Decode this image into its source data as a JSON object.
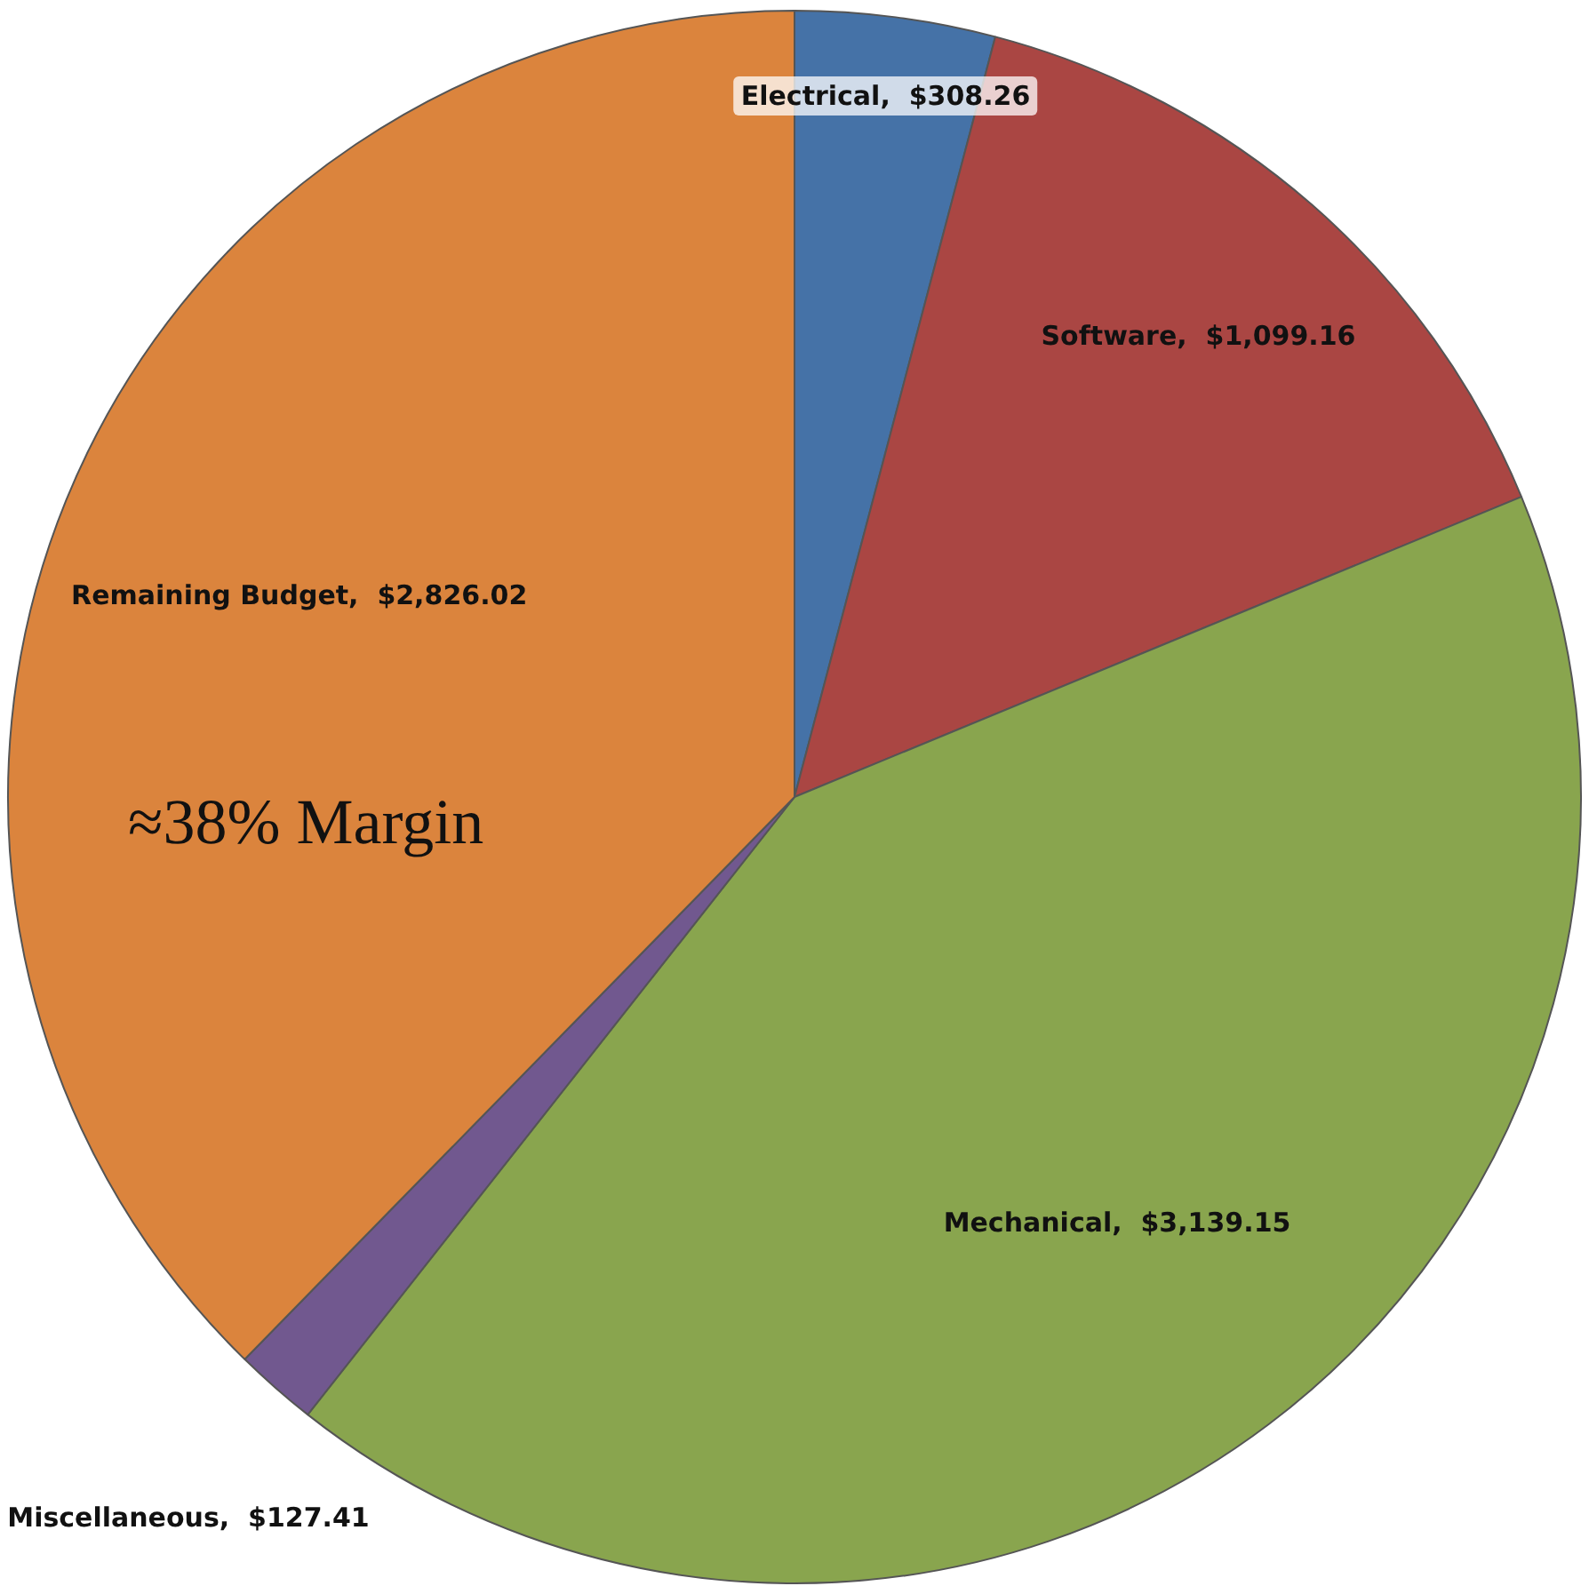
{
  "chart_data": {
    "type": "pie",
    "categories": [
      "Electrical",
      "Software",
      "Mechanical",
      "Miscellaneous",
      "Remaining Budget"
    ],
    "values": [
      308.26,
      1099.16,
      3139.15,
      127.41,
      2826.02
    ],
    "value_labels": [
      "$308.26",
      "$1,099.16",
      "$3,139.15",
      "$127.41",
      "$2,826.02"
    ],
    "colors": [
      "#4572a7",
      "#aa4643",
      "#89a54e",
      "#71588f",
      "#db843d"
    ],
    "annotations": [
      "≈38% Margin"
    ],
    "legend": false
  }
}
